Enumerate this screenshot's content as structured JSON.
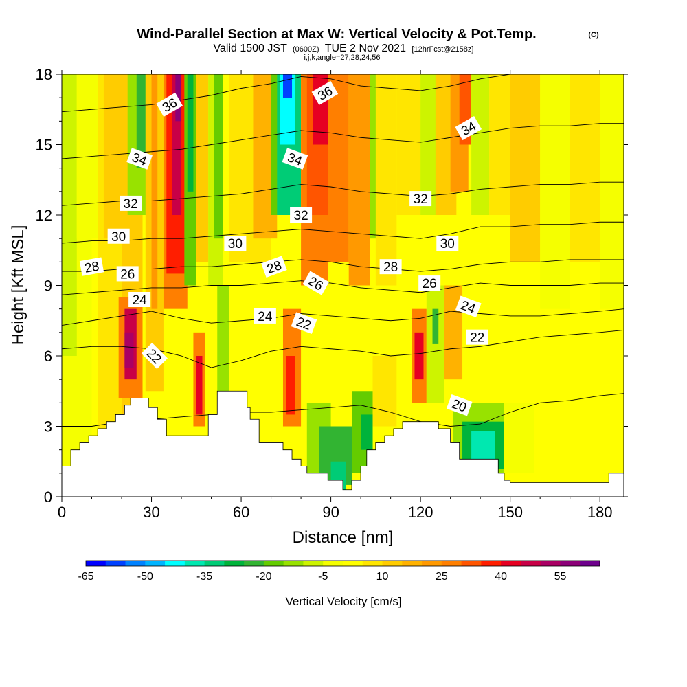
{
  "chart_data": {
    "type": "heatmap",
    "title": "Wind-Parallel Section at Max W: Vertical Velocity & Pot.Temp.",
    "title_mark": "(C)",
    "subtitle": {
      "valid": "Valid 1500 JST",
      "utc": "(0600Z)",
      "date": "TUE 2 Nov 2021",
      "forecast": "[12hrFcst@2158z]"
    },
    "indices_line": "i,j,k,angle=27,28,24,56",
    "xlabel": "Distance [nm]",
    "ylabel": "Height [Kft MSL]",
    "xlim": [
      0,
      188
    ],
    "ylim": [
      0,
      18
    ],
    "x_ticks": [
      0,
      30,
      60,
      90,
      120,
      150,
      180
    ],
    "y_ticks": [
      0,
      3,
      6,
      9,
      12,
      15,
      18
    ],
    "colorbar": {
      "label": "Vertical Velocity [cm/s]",
      "tick_labels": [
        "-65",
        "-50",
        "-35",
        "-20",
        "-5",
        "10",
        "25",
        "40",
        "55"
      ],
      "tick_values": [
        -65,
        -50,
        -35,
        -20,
        -5,
        10,
        25,
        40,
        55
      ],
      "bin_start": -65,
      "bin_step": 5,
      "colors": [
        "#0000ff",
        "#0041ff",
        "#0082ff",
        "#00b4ff",
        "#00ffff",
        "#00e8b0",
        "#00cc76",
        "#00b33b",
        "#32b432",
        "#64cc00",
        "#98e200",
        "#cdf400",
        "#f5ff00",
        "#ffff00",
        "#ffe600",
        "#ffcc00",
        "#ffb200",
        "#ff9900",
        "#ff7f00",
        "#ff5500",
        "#ff1e00",
        "#e60022",
        "#c80046",
        "#aa0064",
        "#8c0078",
        "#6e008c"
      ]
    },
    "terrain": [
      [
        0,
        1.3
      ],
      [
        3,
        1.3
      ],
      [
        3,
        2.0
      ],
      [
        6,
        2.0
      ],
      [
        6,
        2.3
      ],
      [
        9,
        2.3
      ],
      [
        9,
        2.6
      ],
      [
        12,
        2.6
      ],
      [
        12,
        2.9
      ],
      [
        15,
        2.9
      ],
      [
        15,
        3.2
      ],
      [
        18,
        3.2
      ],
      [
        18,
        3.5
      ],
      [
        21,
        3.5
      ],
      [
        21,
        3.9
      ],
      [
        23,
        3.9
      ],
      [
        23,
        4.2
      ],
      [
        29,
        4.2
      ],
      [
        29,
        3.8
      ],
      [
        32,
        3.8
      ],
      [
        32,
        3.3
      ],
      [
        35,
        3.3
      ],
      [
        35,
        2.6
      ],
      [
        49,
        2.6
      ],
      [
        49,
        3.5
      ],
      [
        52,
        3.5
      ],
      [
        52,
        4.5
      ],
      [
        62,
        4.5
      ],
      [
        62,
        3.8
      ],
      [
        63,
        3.8
      ],
      [
        63,
        3.3
      ],
      [
        66,
        3.3
      ],
      [
        66,
        2.3
      ],
      [
        74,
        2.3
      ],
      [
        74,
        2.0
      ],
      [
        77,
        2.0
      ],
      [
        77,
        1.6
      ],
      [
        80,
        1.6
      ],
      [
        80,
        1.3
      ],
      [
        82,
        1.3
      ],
      [
        82,
        1.0
      ],
      [
        89,
        1.0
      ],
      [
        89,
        0.7
      ],
      [
        94,
        0.7
      ],
      [
        94,
        0.3
      ],
      [
        97,
        0.3
      ],
      [
        97,
        0.7
      ],
      [
        100,
        0.7
      ],
      [
        100,
        1.3
      ],
      [
        102,
        1.3
      ],
      [
        102,
        2.0
      ],
      [
        105,
        2.0
      ],
      [
        105,
        2.3
      ],
      [
        108,
        2.3
      ],
      [
        108,
        2.6
      ],
      [
        111,
        2.6
      ],
      [
        111,
        2.9
      ],
      [
        114,
        2.9
      ],
      [
        114,
        3.2
      ],
      [
        126,
        3.2
      ],
      [
        126,
        2.9
      ],
      [
        130,
        2.9
      ],
      [
        130,
        2.3
      ],
      [
        133,
        2.3
      ],
      [
        133,
        1.6
      ],
      [
        146,
        1.6
      ],
      [
        146,
        1.0
      ],
      [
        148,
        1.0
      ],
      [
        148,
        0.7
      ],
      [
        150,
        0.7
      ],
      [
        150,
        0.6
      ],
      [
        175,
        0.6
      ],
      [
        180,
        0.6
      ],
      [
        180,
        0.6
      ],
      [
        183,
        0.6
      ],
      [
        183,
        1.0
      ],
      [
        188,
        1.0
      ]
    ],
    "vertical_velocity_cells": [
      {
        "x0": 0,
        "x1": 188,
        "y0": 0,
        "y1": 18,
        "w": 0
      },
      {
        "x0": 0,
        "x1": 10,
        "y0": 0,
        "y1": 18,
        "w": -5
      },
      {
        "x0": 0,
        "x1": 5,
        "y0": 6,
        "y1": 18,
        "w": -10
      },
      {
        "x0": 5,
        "x1": 12,
        "y0": 11,
        "y1": 18,
        "w": -5
      },
      {
        "x0": 12,
        "x1": 20,
        "y0": 0,
        "y1": 18,
        "w": 5
      },
      {
        "x0": 14,
        "x1": 20,
        "y0": 11,
        "y1": 18,
        "w": 10
      },
      {
        "x0": 20,
        "x1": 27,
        "y0": 0,
        "y1": 18,
        "w": 10
      },
      {
        "x0": 22,
        "x1": 29,
        "y0": 12,
        "y1": 18,
        "w": -15
      },
      {
        "x0": 25,
        "x1": 28,
        "y0": 14,
        "y1": 18,
        "w": -25
      },
      {
        "x0": 19,
        "x1": 27,
        "y0": 4.2,
        "y1": 8.5,
        "w": 25
      },
      {
        "x0": 21,
        "x1": 25,
        "y0": 5,
        "y1": 8,
        "w": 45
      },
      {
        "x0": 21,
        "x1": 24,
        "y0": 5.5,
        "y1": 7,
        "w": 50
      },
      {
        "x0": 28,
        "x1": 34,
        "y0": 4.5,
        "y1": 18,
        "w": 10
      },
      {
        "x0": 30,
        "x1": 32,
        "y0": 8,
        "y1": 18,
        "w": 20
      },
      {
        "x0": 34,
        "x1": 42,
        "y0": 8,
        "y1": 18,
        "w": 25
      },
      {
        "x0": 35,
        "x1": 41,
        "y0": 9.5,
        "y1": 18,
        "w": 35
      },
      {
        "x0": 37,
        "x1": 40,
        "y0": 12,
        "y1": 18,
        "w": 45
      },
      {
        "x0": 38,
        "x1": 40,
        "y0": 16,
        "y1": 18,
        "w": 55
      },
      {
        "x0": 41,
        "x1": 45,
        "y0": 9,
        "y1": 18,
        "w": -20
      },
      {
        "x0": 42,
        "x1": 44,
        "y0": 13,
        "y1": 18,
        "w": -30
      },
      {
        "x0": 45,
        "x1": 49,
        "y0": 10,
        "y1": 18,
        "w": 10
      },
      {
        "x0": 49,
        "x1": 54,
        "y0": 9,
        "y1": 18,
        "w": -10
      },
      {
        "x0": 51,
        "x1": 54,
        "y0": 11,
        "y1": 18,
        "w": -20
      },
      {
        "x0": 44,
        "x1": 48,
        "y0": 3,
        "y1": 7,
        "w": 25
      },
      {
        "x0": 45,
        "x1": 47,
        "y0": 3.5,
        "y1": 6,
        "w": 40
      },
      {
        "x0": 52,
        "x1": 56,
        "y0": 4.5,
        "y1": 9,
        "w": -15
      },
      {
        "x0": 56,
        "x1": 70,
        "y0": 10,
        "y1": 18,
        "w": 5
      },
      {
        "x0": 64,
        "x1": 72,
        "y0": 11,
        "y1": 18,
        "w": 15
      },
      {
        "x0": 70,
        "x1": 76,
        "y0": 12,
        "y1": 18,
        "w": -20
      },
      {
        "x0": 72,
        "x1": 80,
        "y0": 12,
        "y1": 18,
        "w": -35
      },
      {
        "x0": 73,
        "x1": 78,
        "y0": 15,
        "y1": 18,
        "w": -45
      },
      {
        "x0": 74,
        "x1": 77,
        "y0": 17,
        "y1": 18,
        "w": -60
      },
      {
        "x0": 80,
        "x1": 89,
        "y0": 9,
        "y1": 18,
        "w": 25
      },
      {
        "x0": 82,
        "x1": 89,
        "y0": 12,
        "y1": 18,
        "w": 30
      },
      {
        "x0": 84,
        "x1": 90,
        "y0": 15,
        "y1": 18,
        "w": 40
      },
      {
        "x0": 89,
        "x1": 96,
        "y0": 10,
        "y1": 18,
        "w": 25
      },
      {
        "x0": 96,
        "x1": 103,
        "y0": 9,
        "y1": 18,
        "w": 20
      },
      {
        "x0": 103,
        "x1": 107,
        "y0": 11,
        "y1": 18,
        "w": -15
      },
      {
        "x0": 105,
        "x1": 112,
        "y0": 9,
        "y1": 18,
        "w": 5
      },
      {
        "x0": 112,
        "x1": 120,
        "y0": 12,
        "y1": 18,
        "w": 5
      },
      {
        "x0": 120,
        "x1": 126,
        "y0": 12,
        "y1": 18,
        "w": -10
      },
      {
        "x0": 125,
        "x1": 132,
        "y0": 12,
        "y1": 18,
        "w": 10
      },
      {
        "x0": 130,
        "x1": 136,
        "y0": 13,
        "y1": 18,
        "w": 20
      },
      {
        "x0": 133,
        "x1": 137,
        "y0": 15,
        "y1": 18,
        "w": 30
      },
      {
        "x0": 137,
        "x1": 143,
        "y0": 12,
        "y1": 18,
        "w": -10
      },
      {
        "x0": 143,
        "x1": 150,
        "y0": 12,
        "y1": 18,
        "w": 5
      },
      {
        "x0": 150,
        "x1": 160,
        "y0": 10,
        "y1": 18,
        "w": 10
      },
      {
        "x0": 160,
        "x1": 170,
        "y0": 8,
        "y1": 18,
        "w": -5
      },
      {
        "x0": 170,
        "x1": 180,
        "y0": 10,
        "y1": 18,
        "w": 5
      },
      {
        "x0": 180,
        "x1": 188,
        "y0": 8,
        "y1": 18,
        "w": -5
      },
      {
        "x0": 74,
        "x1": 80,
        "y0": 3,
        "y1": 8,
        "w": 25
      },
      {
        "x0": 75,
        "x1": 78,
        "y0": 3.5,
        "y1": 6,
        "w": 35
      },
      {
        "x0": 82,
        "x1": 90,
        "y0": 0.7,
        "y1": 4,
        "w": -15
      },
      {
        "x0": 86,
        "x1": 97,
        "y0": 0.5,
        "y1": 3,
        "w": -25
      },
      {
        "x0": 90,
        "x1": 95,
        "y0": 0.3,
        "y1": 1.5,
        "w": -35
      },
      {
        "x0": 97,
        "x1": 104,
        "y0": 1,
        "y1": 4.5,
        "w": -20
      },
      {
        "x0": 100,
        "x1": 104,
        "y0": 2,
        "y1": 3.5,
        "w": -30
      },
      {
        "x0": 104,
        "x1": 112,
        "y0": 3,
        "y1": 6,
        "w": 5
      },
      {
        "x0": 117,
        "x1": 122,
        "y0": 4,
        "y1": 8,
        "w": 25
      },
      {
        "x0": 118,
        "x1": 121,
        "y0": 5,
        "y1": 7,
        "w": 40
      },
      {
        "x0": 122,
        "x1": 128,
        "y0": 4,
        "y1": 9,
        "w": -10
      },
      {
        "x0": 124,
        "x1": 126,
        "y0": 6.5,
        "y1": 8,
        "w": -25
      },
      {
        "x0": 128,
        "x1": 134,
        "y0": 5,
        "y1": 9,
        "w": 15
      },
      {
        "x0": 131,
        "x1": 152,
        "y0": 1,
        "y1": 4,
        "w": -15
      },
      {
        "x0": 134,
        "x1": 148,
        "y0": 1.2,
        "y1": 3.2,
        "w": -30
      },
      {
        "x0": 137,
        "x1": 145,
        "y0": 1.6,
        "y1": 2.8,
        "w": -40
      },
      {
        "x0": 148,
        "x1": 158,
        "y0": 1,
        "y1": 4,
        "w": -5
      },
      {
        "x0": 158,
        "x1": 188,
        "y0": 0.6,
        "y1": 3,
        "w": 0
      }
    ],
    "theta_isentropes": [
      {
        "value": 20,
        "y": [
          3.0,
          3.0,
          3.2,
          3.3,
          3.4,
          3.5,
          3.6,
          3.6,
          3.7,
          3.8,
          3.9,
          3.6,
          3.2,
          3.0,
          3.1,
          3.6,
          4.0,
          4.1,
          4.3,
          4.4
        ]
      },
      {
        "value": 22,
        "y": [
          6.3,
          6.4,
          6.4,
          6.3,
          6.0,
          5.5,
          5.8,
          6.2,
          6.4,
          6.3,
          6.2,
          6.0,
          6.1,
          6.3,
          6.4,
          6.6,
          6.8,
          6.9,
          7.0,
          7.1
        ]
      },
      {
        "value": 24,
        "y": [
          7.3,
          7.5,
          7.7,
          7.9,
          7.6,
          7.4,
          7.5,
          7.6,
          7.8,
          7.7,
          7.6,
          7.5,
          7.6,
          7.9,
          7.8,
          7.7,
          7.7,
          7.8,
          7.9,
          8.0
        ]
      },
      {
        "value": 26,
        "y": [
          8.6,
          8.7,
          8.8,
          8.9,
          8.9,
          9.0,
          9.0,
          9.1,
          9.2,
          9.1,
          8.9,
          8.8,
          8.7,
          8.9,
          9.1,
          9.0,
          9.0,
          9.0,
          9.1,
          9.1
        ]
      },
      {
        "value": 28,
        "y": [
          9.6,
          9.6,
          9.7,
          9.7,
          9.8,
          9.8,
          9.9,
          10.0,
          10.1,
          10.0,
          9.8,
          9.7,
          9.6,
          9.7,
          9.9,
          10.0,
          10.0,
          10.1,
          10.1,
          10.1
        ]
      },
      {
        "value": 30,
        "y": [
          10.8,
          10.9,
          10.9,
          11.0,
          11.0,
          11.1,
          11.2,
          11.3,
          11.4,
          11.3,
          11.2,
          11.1,
          11.0,
          11.2,
          11.5,
          11.5,
          11.6,
          11.6,
          11.7,
          11.7
        ]
      },
      {
        "value": 32,
        "y": [
          12.4,
          12.5,
          12.6,
          12.6,
          12.7,
          12.8,
          12.9,
          13.1,
          13.3,
          13.2,
          13.0,
          12.9,
          12.8,
          12.9,
          13.1,
          13.2,
          13.3,
          13.3,
          13.4,
          13.4
        ]
      },
      {
        "value": 34,
        "y": [
          14.4,
          14.5,
          14.6,
          14.7,
          14.8,
          15.0,
          15.2,
          15.4,
          15.6,
          15.5,
          15.3,
          15.2,
          15.1,
          15.3,
          15.5,
          15.7,
          15.8,
          15.8,
          15.9,
          15.9
        ]
      },
      {
        "value": 36,
        "y": [
          16.4,
          16.5,
          16.6,
          16.7,
          16.9,
          17.1,
          17.4,
          17.6,
          17.9,
          17.8,
          17.5,
          17.4,
          17.3,
          17.5,
          17.8,
          18.0,
          18.1,
          18.2,
          18.3,
          18.3
        ]
      }
    ],
    "theta_x": [
      0,
      10,
      20,
      30,
      40,
      50,
      60,
      70,
      80,
      90,
      100,
      110,
      120,
      130,
      140,
      150,
      160,
      170,
      180,
      188
    ],
    "contour_labels": [
      {
        "text": "36",
        "x": 36,
        "y": 16.7,
        "rot": -30
      },
      {
        "text": "36",
        "x": 88,
        "y": 17.2,
        "rot": -30
      },
      {
        "text": "34",
        "x": 26,
        "y": 14.4,
        "rot": 20
      },
      {
        "text": "34",
        "x": 78,
        "y": 14.4,
        "rot": 20
      },
      {
        "text": "34",
        "x": 136,
        "y": 15.7,
        "rot": -30
      },
      {
        "text": "32",
        "x": 23,
        "y": 12.5,
        "rot": 0
      },
      {
        "text": "32",
        "x": 80,
        "y": 12.0,
        "rot": 0
      },
      {
        "text": "32",
        "x": 120,
        "y": 12.7,
        "rot": 0
      },
      {
        "text": "30",
        "x": 19,
        "y": 11.1,
        "rot": 0
      },
      {
        "text": "30",
        "x": 58,
        "y": 10.8,
        "rot": 0
      },
      {
        "text": "30",
        "x": 129,
        "y": 10.8,
        "rot": 0
      },
      {
        "text": "28",
        "x": 10,
        "y": 9.8,
        "rot": -10
      },
      {
        "text": "28",
        "x": 71,
        "y": 9.8,
        "rot": -20
      },
      {
        "text": "28",
        "x": 110,
        "y": 9.8,
        "rot": 0
      },
      {
        "text": "26",
        "x": 22,
        "y": 9.5,
        "rot": 0
      },
      {
        "text": "26",
        "x": 85,
        "y": 9.1,
        "rot": 30
      },
      {
        "text": "26",
        "x": 123,
        "y": 9.1,
        "rot": 0
      },
      {
        "text": "24",
        "x": 26,
        "y": 8.4,
        "rot": 0
      },
      {
        "text": "24",
        "x": 68,
        "y": 7.7,
        "rot": 0
      },
      {
        "text": "24",
        "x": 136,
        "y": 8.1,
        "rot": 20
      },
      {
        "text": "22",
        "x": 31,
        "y": 6.0,
        "rot": 45
      },
      {
        "text": "22",
        "x": 81,
        "y": 7.4,
        "rot": 20
      },
      {
        "text": "22",
        "x": 139,
        "y": 6.8,
        "rot": 0
      },
      {
        "text": "20",
        "x": 133,
        "y": 3.9,
        "rot": 20
      }
    ]
  }
}
